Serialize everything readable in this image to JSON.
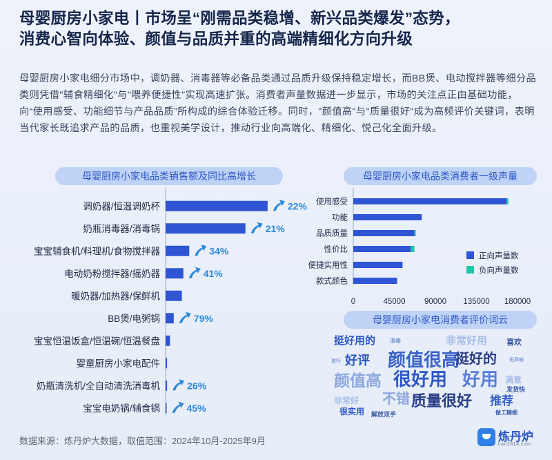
{
  "header": {
    "title_line1": "母婴厨房小家电丨市场呈“刚需品类稳增、新兴品类爆发”态势，",
    "title_line2": "消费心智向体验、颜值与品质并重的高端精细化方向升级",
    "description": "母婴厨房小家电细分市场中，调奶器、消毒器等必备品类通过品质升级保持稳定增长，而BB煲、电动搅拌器等细分品类则凭借\"辅食精细化\"与\"喂养便捷性\"实现高速扩张。消费者声量数据进一步显示，市场的关注点正由基础功能，向“使用感受、功能细节与产品品质”所构成的综合体验迁移。同时，\"颜值高\"与\"质量很好\"成为高频评价关键词，表明当代家长既追求产品的品质，也重视美学设计，推动行业向高端化、精细化、悦己化全面升级。"
  },
  "colors": {
    "bar": "#2f55d4",
    "negative": "#22c4a8",
    "arrow": "#2e88d8",
    "axis_text": "#1f2a44"
  },
  "chart_data": [
    {
      "type": "bar",
      "orientation": "horizontal",
      "title": "母婴厨房小家电品类销售额及同比高增长",
      "categories": [
        "调奶器/恒温调奶杯",
        "奶瓶消毒器/消毒锅",
        "宝宝辅食机/料理机/食物搅拌器",
        "电动奶粉搅拌器/摇奶器",
        "暖奶器/加热器/保鲜机",
        "BB煲/电粥锅",
        "宝宝恒温饭盒/恒温碗/恒温餐盘",
        "婴童厨房小家电配件",
        "奶瓶清洗机/全自动清洗消毒机",
        "宝宝电奶锅/辅食锅"
      ],
      "values": [
        138,
        108,
        32,
        24,
        22,
        11,
        6,
        2,
        2,
        1
      ],
      "growth_labels": [
        "22%",
        "21%",
        "34%",
        "41%",
        "",
        "79%",
        "",
        "",
        "26%",
        "45%"
      ],
      "xlim": [
        0,
        140
      ],
      "axis_ticks_shown": false,
      "grid": false
    },
    {
      "type": "bar",
      "orientation": "horizontal",
      "stacked": true,
      "title": "母婴厨房小家电品类消费者一级声量",
      "categories": [
        "使用感受",
        "功能",
        "品质质量",
        "性价比",
        "便捷实用性",
        "款式颜色"
      ],
      "series": [
        {
          "name": "正向声量数",
          "values": [
            168000,
            75000,
            67000,
            63000,
            54000,
            48000
          ]
        },
        {
          "name": "负向声量数",
          "values": [
            2000,
            0,
            1500,
            4000,
            0,
            0
          ]
        }
      ],
      "xticks": [
        "0",
        "45000",
        "90000",
        "135000",
        "180000"
      ],
      "xlim": [
        0,
        180000
      ],
      "legend": "right",
      "grid": false
    }
  ],
  "wordcloud": {
    "title": "母婴厨房小家电消费者评价词云",
    "words": [
      {
        "text": "挺好用的",
        "size": 15,
        "color": "#2d56c7"
      },
      {
        "text": "消毒",
        "size": 8,
        "color": "#7f9bd3"
      },
      {
        "text": "非常好用",
        "size": 15,
        "color": "#a8bde6"
      },
      {
        "text": "喜欢",
        "size": 11,
        "color": "#3a5aa8"
      },
      {
        "text": "进行",
        "size": 7,
        "color": "#7f9bd3"
      },
      {
        "text": "好评",
        "size": 18,
        "color": "#2d56c7"
      },
      {
        "text": "颜值很高",
        "size": 26,
        "color": "#3a62c9"
      },
      {
        "text": "挺好的",
        "size": 20,
        "color": "#2a3d86"
      },
      {
        "text": "无异味",
        "size": 7,
        "color": "#7f9bd3"
      },
      {
        "text": "颜值高",
        "size": 23,
        "color": "#8ea8dd"
      },
      {
        "text": "很好用",
        "size": 26,
        "color": "#2d56c7"
      },
      {
        "text": "好用",
        "size": 26,
        "color": "#5a7fd6"
      },
      {
        "text": "满意",
        "size": 12,
        "color": "#a8bde6"
      },
      {
        "text": "发货快",
        "size": 9,
        "color": "#3a5aa8"
      },
      {
        "text": "非常好",
        "size": 12,
        "color": "#a8bde6"
      },
      {
        "text": "不错",
        "size": 20,
        "color": "#8ea8dd"
      },
      {
        "text": "质量很好",
        "size": 22,
        "color": "#2a3d86"
      },
      {
        "text": "推荐",
        "size": 17,
        "color": "#3a62c9"
      },
      {
        "text": "很实用",
        "size": 12,
        "color": "#2d56c7"
      },
      {
        "text": "解放双手",
        "size": 9,
        "color": "#3a5aa8"
      },
      {
        "text": "做工精细",
        "size": 8,
        "color": "#3a5aa8"
      }
    ]
  },
  "footer": {
    "source": "数据来源：炼丹炉大数据，取值范围：2024年10月-2025年9月",
    "logo_text": "炼丹炉",
    "logo_sub": "lian1818.com"
  }
}
